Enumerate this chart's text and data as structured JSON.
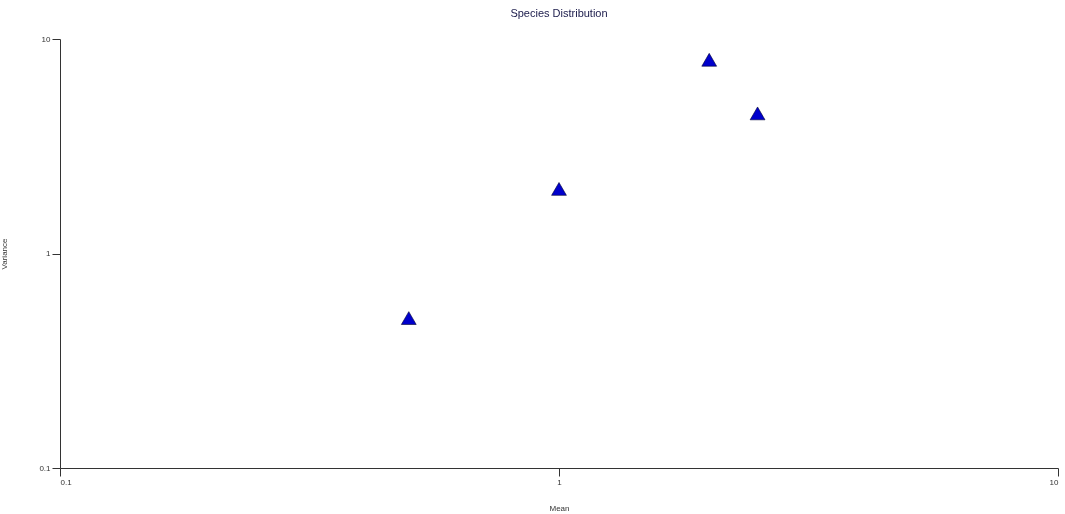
{
  "chart_data": {
    "type": "scatter",
    "title": "Species Distribution",
    "xlabel": "Mean",
    "ylabel": "Variance",
    "x": [
      0.5,
      1,
      2,
      2.5
    ],
    "series": [
      {
        "color": "#0000cc",
        "values": [
          0.5,
          2,
          8,
          4.5
        ]
      }
    ],
    "log": "xy",
    "xlim": [
      0.1,
      10
    ],
    "ylim": [
      0.1,
      10
    ],
    "xticks": [
      0.1,
      1,
      10
    ],
    "yticks": [
      0.1,
      1,
      10
    ],
    "marker": "triangle",
    "grid": false,
    "legend": false
  }
}
